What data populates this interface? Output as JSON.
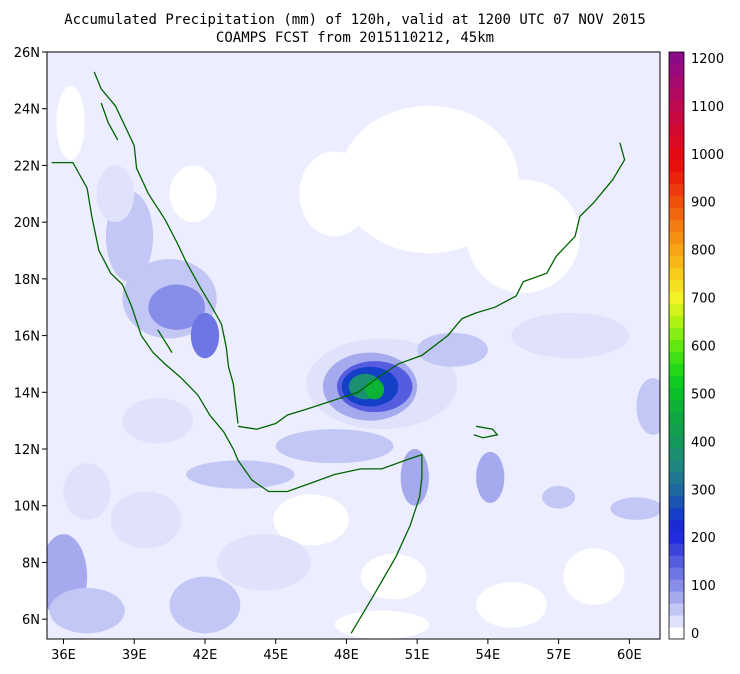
{
  "title": {
    "line1": "Accumulated Precipitation (mm) of 120h, valid at 1200 UTC 07 NOV 2015",
    "line2": "COAMPS FCST from 2015110212, 45km"
  },
  "map": {
    "lon_range": [
      35.3,
      61.3
    ],
    "lat_range": [
      5.3,
      26.0
    ],
    "lon_ticks": [
      {
        "value": 36,
        "label": "36E"
      },
      {
        "value": 39,
        "label": "39E"
      },
      {
        "value": 42,
        "label": "42E"
      },
      {
        "value": 45,
        "label": "45E"
      },
      {
        "value": 48,
        "label": "48E"
      },
      {
        "value": 51,
        "label": "51E"
      },
      {
        "value": 54,
        "label": "54E"
      },
      {
        "value": 57,
        "label": "57E"
      },
      {
        "value": 60,
        "label": "60E"
      }
    ],
    "lat_ticks": [
      {
        "value": 26,
        "label": "26N"
      },
      {
        "value": 24,
        "label": "24N"
      },
      {
        "value": 22,
        "label": "22N"
      },
      {
        "value": 20,
        "label": "20N"
      },
      {
        "value": 18,
        "label": "18N"
      },
      {
        "value": 16,
        "label": "16N"
      },
      {
        "value": 14,
        "label": "14N"
      },
      {
        "value": 12,
        "label": "12N"
      },
      {
        "value": 10,
        "label": "10N"
      },
      {
        "value": 8,
        "label": "8N"
      },
      {
        "value": 6,
        "label": "6N"
      }
    ],
    "coastline_color": "#006400",
    "background_color": "#eceeff"
  },
  "colorbar": {
    "levels": [
      {
        "value": 0,
        "label": "0",
        "color": "#ffffff"
      },
      {
        "value": 25,
        "label": "",
        "color": "#e0e2fb"
      },
      {
        "value": 50,
        "label": "",
        "color": "#c3c7f5"
      },
      {
        "value": 75,
        "label": "",
        "color": "#a5aaef"
      },
      {
        "value": 100,
        "label": "100",
        "color": "#878de9"
      },
      {
        "value": 125,
        "label": "",
        "color": "#6e75e4"
      },
      {
        "value": 150,
        "label": "",
        "color": "#555ce0"
      },
      {
        "value": 175,
        "label": "",
        "color": "#3c43db"
      },
      {
        "value": 200,
        "label": "200",
        "color": "#232be0"
      },
      {
        "value": 225,
        "label": "",
        "color": "#1a2bd6"
      },
      {
        "value": 250,
        "label": "",
        "color": "#1440c8"
      },
      {
        "value": 275,
        "label": "",
        "color": "#1a55b4"
      },
      {
        "value": 300,
        "label": "300",
        "color": "#1e6aa0"
      },
      {
        "value": 325,
        "label": "",
        "color": "#1e7890"
      },
      {
        "value": 350,
        "label": "",
        "color": "#1e8880"
      },
      {
        "value": 375,
        "label": "",
        "color": "#1a9070"
      },
      {
        "value": 400,
        "label": "400",
        "color": "#15985c"
      },
      {
        "value": 425,
        "label": "",
        "color": "#12a04e"
      },
      {
        "value": 450,
        "label": "",
        "color": "#0fa840"
      },
      {
        "value": 475,
        "label": "",
        "color": "#0db335"
      },
      {
        "value": 500,
        "label": "500",
        "color": "#0ac02a"
      },
      {
        "value": 525,
        "label": "",
        "color": "#10cc20"
      },
      {
        "value": 550,
        "label": "",
        "color": "#22d818"
      },
      {
        "value": 575,
        "label": "",
        "color": "#40e014"
      },
      {
        "value": 600,
        "label": "600",
        "color": "#60e810"
      },
      {
        "value": 625,
        "label": "",
        "color": "#86ee12"
      },
      {
        "value": 650,
        "label": "",
        "color": "#aef214"
      },
      {
        "value": 675,
        "label": "",
        "color": "#d2f41c"
      },
      {
        "value": 700,
        "label": "700",
        "color": "#f2f226"
      },
      {
        "value": 725,
        "label": "",
        "color": "#f6e022"
      },
      {
        "value": 750,
        "label": "",
        "color": "#f8cc1c"
      },
      {
        "value": 775,
        "label": "",
        "color": "#f8b818"
      },
      {
        "value": 800,
        "label": "800",
        "color": "#f8a414"
      },
      {
        "value": 825,
        "label": "",
        "color": "#f69012"
      },
      {
        "value": 850,
        "label": "",
        "color": "#f47c10"
      },
      {
        "value": 875,
        "label": "",
        "color": "#f2660e"
      },
      {
        "value": 900,
        "label": "900",
        "color": "#f0500c"
      },
      {
        "value": 925,
        "label": "",
        "color": "#ee3a0c"
      },
      {
        "value": 950,
        "label": "",
        "color": "#ec240c"
      },
      {
        "value": 975,
        "label": "",
        "color": "#ea100c"
      },
      {
        "value": 1000,
        "label": "1000",
        "color": "#e60a14"
      },
      {
        "value": 1025,
        "label": "",
        "color": "#dc0a22"
      },
      {
        "value": 1050,
        "label": "",
        "color": "#d20a30"
      },
      {
        "value": 1075,
        "label": "",
        "color": "#c80a40"
      },
      {
        "value": 1100,
        "label": "1100",
        "color": "#be0a50"
      },
      {
        "value": 1125,
        "label": "",
        "color": "#b20a60"
      },
      {
        "value": 1150,
        "label": "",
        "color": "#a60a6e"
      },
      {
        "value": 1175,
        "label": "",
        "color": "#9a0a7c"
      },
      {
        "value": 1200,
        "label": "1200",
        "color": "#8c0a88"
      }
    ]
  },
  "precip_blobs": [
    {
      "lon": 49.5,
      "lat": 14.3,
      "rlon": 3.2,
      "rlat": 1.6,
      "value": 25
    },
    {
      "lon": 49.0,
      "lat": 14.2,
      "rlon": 2.0,
      "rlat": 1.2,
      "value": 75
    },
    {
      "lon": 49.2,
      "lat": 14.2,
      "rlon": 1.6,
      "rlat": 0.9,
      "value": 150
    },
    {
      "lon": 49.0,
      "lat": 14.2,
      "rlon": 1.2,
      "rlat": 0.7,
      "value": 250
    },
    {
      "lon": 48.8,
      "lat": 14.2,
      "rlon": 0.7,
      "rlat": 0.45,
      "value": 375
    },
    {
      "lon": 49.2,
      "lat": 14.1,
      "rlon": 0.4,
      "rlat": 0.35,
      "value": 475
    },
    {
      "lon": 40.5,
      "lat": 17.3,
      "rlon": 2.0,
      "rlat": 1.4,
      "value": 50
    },
    {
      "lon": 40.8,
      "lat": 17.0,
      "rlon": 1.2,
      "rlat": 0.8,
      "value": 100
    },
    {
      "lon": 42.0,
      "lat": 16.0,
      "rlon": 0.6,
      "rlat": 0.8,
      "value": 125
    },
    {
      "lon": 38.8,
      "lat": 19.5,
      "rlon": 1.0,
      "rlat": 1.6,
      "value": 50
    },
    {
      "lon": 38.2,
      "lat": 21.0,
      "rlon": 0.8,
      "rlat": 1.0,
      "value": 25
    },
    {
      "lon": 43.5,
      "lat": 11.1,
      "rlon": 2.3,
      "rlat": 0.5,
      "value": 50
    },
    {
      "lon": 47.5,
      "lat": 12.1,
      "rlon": 2.5,
      "rlat": 0.6,
      "value": 50
    },
    {
      "lon": 54.1,
      "lat": 11.0,
      "rlon": 0.6,
      "rlat": 0.9,
      "value": 75
    },
    {
      "lon": 50.9,
      "lat": 11.0,
      "rlon": 0.6,
      "rlat": 1.0,
      "value": 75
    },
    {
      "lon": 36.0,
      "lat": 7.5,
      "rlon": 1.0,
      "rlat": 1.5,
      "value": 75
    },
    {
      "lon": 37.0,
      "lat": 6.3,
      "rlon": 1.6,
      "rlat": 0.8,
      "value": 50
    },
    {
      "lon": 42.0,
      "lat": 6.5,
      "rlon": 1.5,
      "rlat": 1.0,
      "value": 50
    },
    {
      "lon": 61.0,
      "lat": 13.5,
      "rlon": 0.7,
      "rlat": 1.0,
      "value": 50
    },
    {
      "lon": 60.3,
      "lat": 9.9,
      "rlon": 1.1,
      "rlat": 0.4,
      "value": 50
    },
    {
      "lon": 57.0,
      "lat": 10.3,
      "rlon": 0.7,
      "rlat": 0.4,
      "value": 50
    },
    {
      "lon": 52.5,
      "lat": 15.5,
      "rlon": 1.5,
      "rlat": 0.6,
      "value": 50
    },
    {
      "lon": 40.0,
      "lat": 13.0,
      "rlon": 1.5,
      "rlat": 0.8,
      "value": 25
    },
    {
      "lon": 39.5,
      "lat": 9.5,
      "rlon": 1.5,
      "rlat": 1.0,
      "value": 25
    },
    {
      "lon": 44.5,
      "lat": 8.0,
      "rlon": 2.0,
      "rlat": 1.0,
      "value": 25
    },
    {
      "lon": 37.0,
      "lat": 10.5,
      "rlon": 1.0,
      "rlat": 1.0,
      "value": 25
    },
    {
      "lon": 57.5,
      "lat": 16.0,
      "rlon": 2.5,
      "rlat": 0.8,
      "value": 25
    }
  ],
  "dry_areas": [
    {
      "lon": 51.5,
      "lat": 21.5,
      "rlon": 3.8,
      "rlat": 2.6
    },
    {
      "lon": 55.5,
      "lat": 19.5,
      "rlon": 2.4,
      "rlat": 2.0
    },
    {
      "lon": 47.5,
      "lat": 21.0,
      "rlon": 1.5,
      "rlat": 1.5
    },
    {
      "lon": 41.5,
      "lat": 21.0,
      "rlon": 1.0,
      "rlat": 1.0
    },
    {
      "lon": 36.3,
      "lat": 23.5,
      "rlon": 0.6,
      "rlat": 1.3
    },
    {
      "lon": 46.5,
      "lat": 9.5,
      "rlon": 1.6,
      "rlat": 0.9
    },
    {
      "lon": 50.0,
      "lat": 7.5,
      "rlon": 1.4,
      "rlat": 0.8
    },
    {
      "lon": 49.5,
      "lat": 5.8,
      "rlon": 2.0,
      "rlat": 0.5
    },
    {
      "lon": 55.0,
      "lat": 6.5,
      "rlon": 1.5,
      "rlat": 0.8
    },
    {
      "lon": 58.5,
      "lat": 7.5,
      "rlon": 1.3,
      "rlat": 1.0
    }
  ],
  "coastlines": [
    [
      [
        37.3,
        25.3
      ],
      [
        37.6,
        24.7
      ],
      [
        38.2,
        24.1
      ],
      [
        38.6,
        23.4
      ],
      [
        39.0,
        22.7
      ],
      [
        39.1,
        21.9
      ],
      [
        39.6,
        21.0
      ],
      [
        40.3,
        20.1
      ],
      [
        40.8,
        19.3
      ],
      [
        41.2,
        18.6
      ],
      [
        41.8,
        17.7
      ],
      [
        42.3,
        17.0
      ],
      [
        42.7,
        16.4
      ],
      [
        42.9,
        15.6
      ],
      [
        43.0,
        14.9
      ],
      [
        43.2,
        14.3
      ],
      [
        43.3,
        13.6
      ],
      [
        43.4,
        12.9
      ]
    ],
    [
      [
        35.5,
        22.1
      ],
      [
        36.4,
        22.1
      ],
      [
        37.0,
        21.2
      ],
      [
        37.2,
        20.2
      ],
      [
        37.5,
        19.0
      ],
      [
        38.0,
        18.2
      ],
      [
        38.5,
        17.8
      ],
      [
        38.9,
        17.0
      ],
      [
        39.3,
        16.0
      ],
      [
        39.8,
        15.4
      ],
      [
        40.3,
        15.0
      ],
      [
        41.0,
        14.5
      ],
      [
        41.7,
        13.9
      ],
      [
        42.2,
        13.2
      ],
      [
        42.8,
        12.6
      ],
      [
        43.2,
        12.0
      ],
      [
        43.4,
        11.6
      ],
      [
        44.0,
        10.9
      ],
      [
        44.7,
        10.5
      ],
      [
        45.5,
        10.5
      ],
      [
        46.5,
        10.8
      ],
      [
        47.5,
        11.1
      ],
      [
        48.6,
        11.3
      ],
      [
        49.5,
        11.3
      ],
      [
        50.5,
        11.6
      ],
      [
        51.2,
        11.8
      ],
      [
        51.2,
        11.0
      ],
      [
        51.1,
        10.3
      ],
      [
        50.7,
        9.3
      ],
      [
        50.1,
        8.2
      ],
      [
        49.2,
        6.9
      ],
      [
        48.2,
        5.5
      ]
    ],
    [
      [
        43.4,
        12.8
      ],
      [
        44.2,
        12.7
      ],
      [
        45.0,
        12.9
      ],
      [
        45.5,
        13.2
      ],
      [
        46.3,
        13.4
      ],
      [
        47.4,
        13.7
      ],
      [
        48.5,
        14.0
      ],
      [
        49.3,
        14.5
      ],
      [
        50.2,
        15.0
      ],
      [
        51.2,
        15.3
      ],
      [
        52.3,
        16.0
      ],
      [
        52.9,
        16.6
      ],
      [
        53.5,
        16.8
      ],
      [
        54.3,
        17.0
      ],
      [
        55.2,
        17.4
      ],
      [
        55.5,
        17.9
      ],
      [
        56.5,
        18.2
      ],
      [
        56.9,
        18.8
      ],
      [
        57.7,
        19.5
      ],
      [
        57.9,
        20.2
      ],
      [
        58.5,
        20.7
      ],
      [
        59.3,
        21.5
      ],
      [
        59.8,
        22.2
      ],
      [
        59.6,
        22.8
      ]
    ],
    [
      [
        37.6,
        24.2
      ],
      [
        37.9,
        23.5
      ],
      [
        38.3,
        22.9
      ]
    ],
    [
      [
        40.0,
        16.2
      ],
      [
        40.3,
        15.8
      ],
      [
        40.6,
        15.4
      ]
    ],
    [
      [
        53.5,
        12.8
      ],
      [
        54.2,
        12.7
      ],
      [
        54.4,
        12.5
      ],
      [
        53.8,
        12.4
      ],
      [
        53.4,
        12.5
      ]
    ]
  ]
}
